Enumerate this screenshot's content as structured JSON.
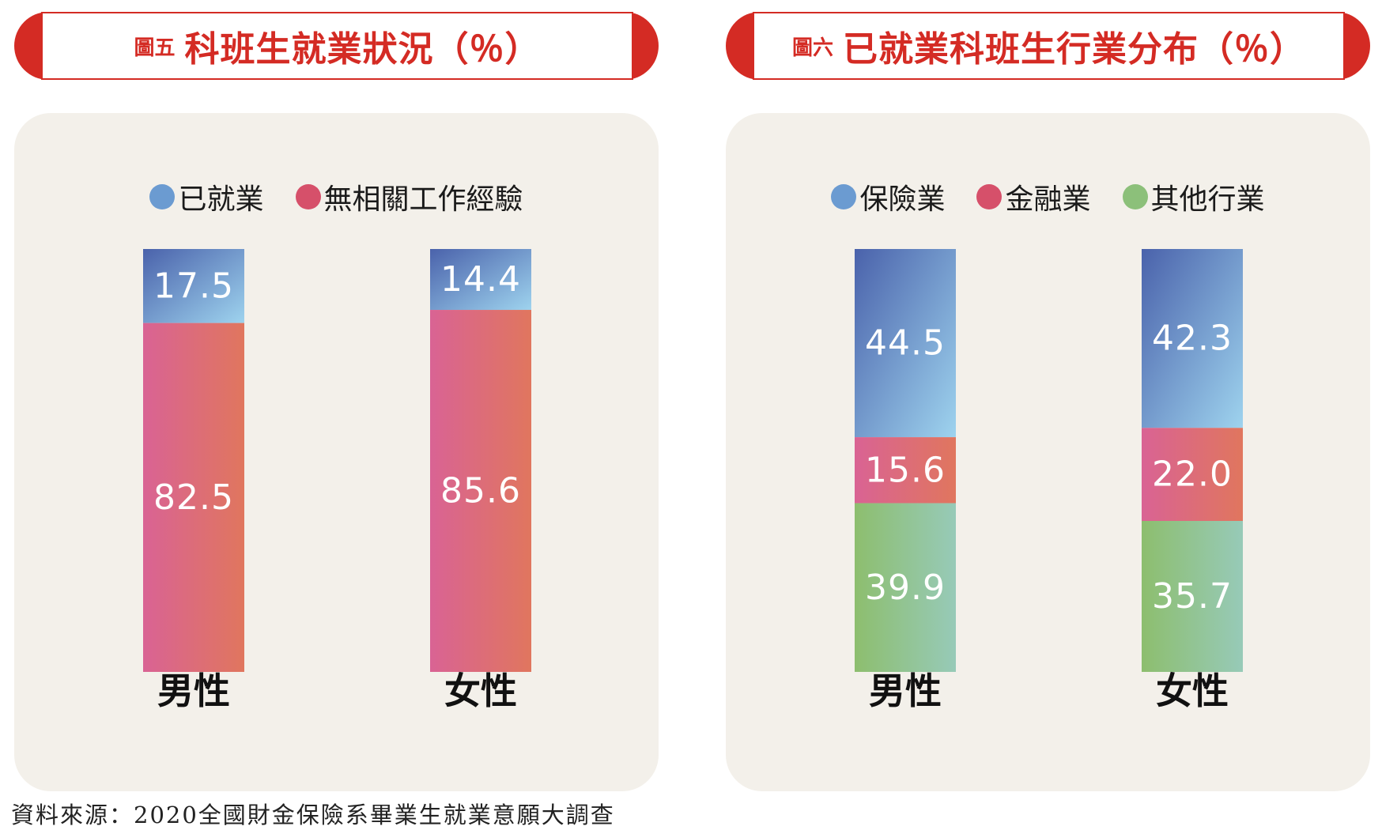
{
  "colors": {
    "banner_red": "#d42b24",
    "panel_bg": "#f3f0ea",
    "blue_dot": "#6b9bd1",
    "red_dot": "#d6506a",
    "green_dot": "#8cc07a"
  },
  "chart_data": [
    {
      "type": "bar",
      "stacked": true,
      "figure_no": "圖五",
      "title": "科班生就業狀況（％）",
      "categories": [
        "男性",
        "女性"
      ],
      "series": [
        {
          "name": "已就業",
          "values": [
            17.5,
            14.4
          ],
          "color": "#6b9bd1"
        },
        {
          "name": "無相關工作經驗",
          "values": [
            82.5,
            85.6
          ],
          "color": "#d6506a"
        }
      ],
      "ylim": [
        0,
        100
      ],
      "legend_position": "top-center",
      "grid": false
    },
    {
      "type": "bar",
      "stacked": true,
      "figure_no": "圖六",
      "title": "已就業科班生行業分布（％）",
      "categories": [
        "男性",
        "女性"
      ],
      "series": [
        {
          "name": "保險業",
          "values": [
            44.5,
            42.3
          ],
          "color": "#6b9bd1"
        },
        {
          "name": "金融業",
          "values": [
            15.6,
            22.0
          ],
          "color": "#d6506a"
        },
        {
          "name": "其他行業",
          "values": [
            39.9,
            35.7
          ],
          "color": "#8cc07a"
        }
      ],
      "ylim": [
        0,
        100
      ],
      "legend_position": "top-center",
      "grid": false
    }
  ],
  "source": "資料來源：2020全國財金保險系畢業生就業意願大調查"
}
